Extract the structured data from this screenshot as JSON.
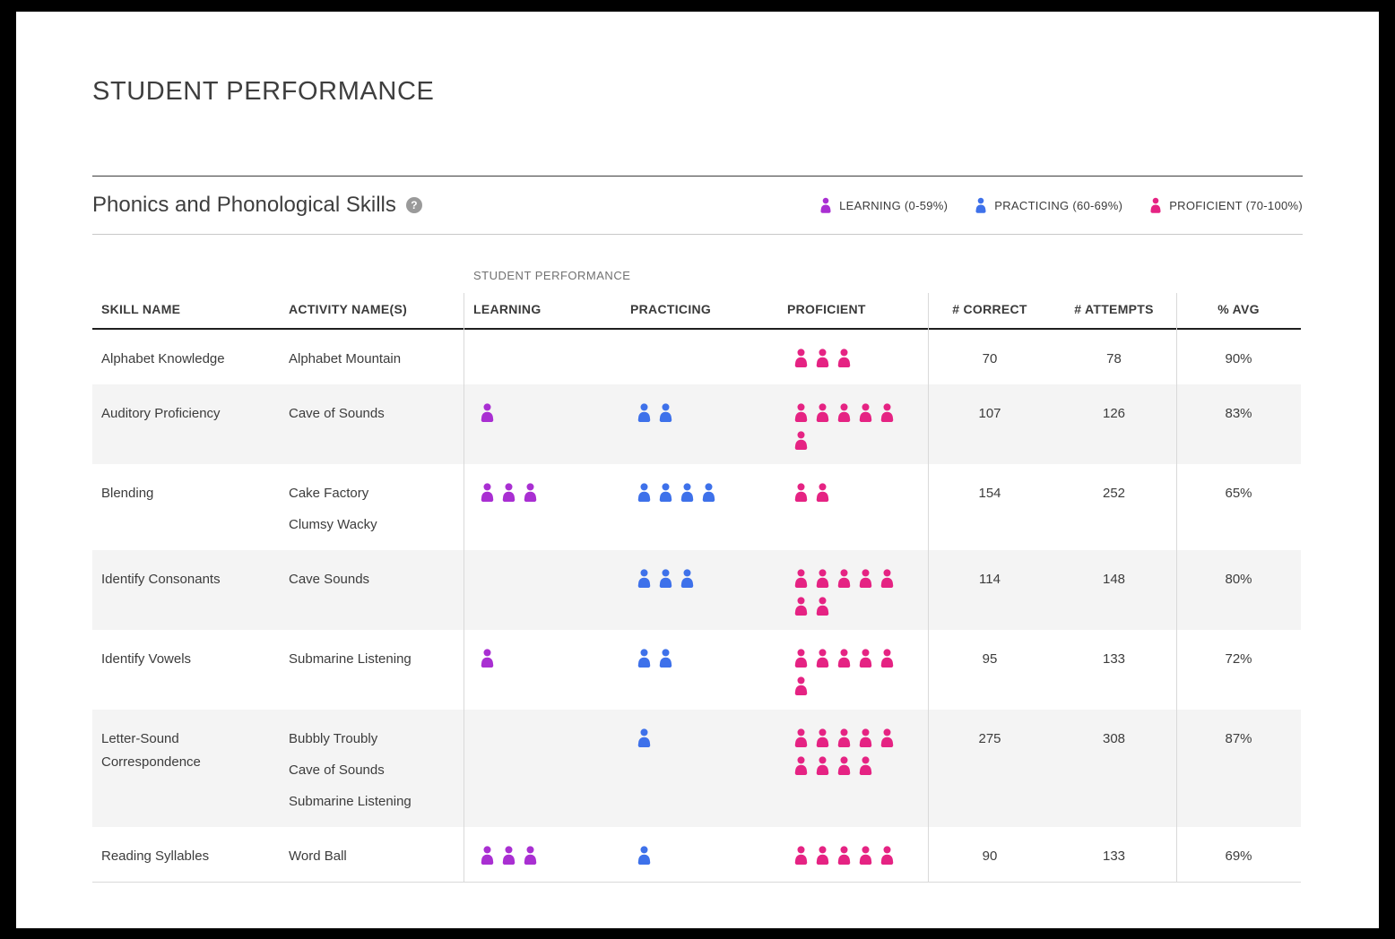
{
  "page": {
    "title": "STUDENT PERFORMANCE"
  },
  "section": {
    "title": "Phonics and Phonological Skills",
    "help_icon": "?"
  },
  "colors": {
    "learning": "#a92fd2",
    "practicing": "#3e71ea",
    "proficient": "#e52383",
    "header_text": "#3a3a3a",
    "alt_row_bg": "#f4f4f4"
  },
  "legend": [
    {
      "key": "learning",
      "label": "LEARNING (0-59%)"
    },
    {
      "key": "practicing",
      "label": "PRACTICING (60-69%)"
    },
    {
      "key": "proficient",
      "label": "PROFICIENT (70-100%)"
    }
  ],
  "table": {
    "group_header": "STUDENT PERFORMANCE",
    "columns": [
      {
        "key": "skill",
        "label": "SKILL NAME"
      },
      {
        "key": "activity",
        "label": "ACTIVITY NAME(S)"
      },
      {
        "key": "learning",
        "label": "LEARNING"
      },
      {
        "key": "practicing",
        "label": "PRACTICING"
      },
      {
        "key": "proficient",
        "label": "PROFICIENT"
      },
      {
        "key": "correct",
        "label": "# CORRECT"
      },
      {
        "key": "attempts",
        "label": "# ATTEMPTS"
      },
      {
        "key": "avg",
        "label": "% AVG"
      }
    ],
    "rows": [
      {
        "skill": "Alphabet Knowledge",
        "activities": [
          "Alphabet Mountain"
        ],
        "learning": 0,
        "practicing": 0,
        "proficient": 3,
        "correct": "70",
        "attempts": "78",
        "avg": "90%"
      },
      {
        "skill": "Auditory Proficiency",
        "activities": [
          "Cave of Sounds"
        ],
        "learning": 1,
        "practicing": 2,
        "proficient": 6,
        "correct": "107",
        "attempts": "126",
        "avg": "83%"
      },
      {
        "skill": "Blending",
        "activities": [
          "Cake Factory",
          "Clumsy Wacky"
        ],
        "learning": 3,
        "practicing": 4,
        "proficient": 2,
        "correct": "154",
        "attempts": "252",
        "avg": "65%"
      },
      {
        "skill": "Identify Consonants",
        "activities": [
          "Cave Sounds"
        ],
        "learning": 0,
        "practicing": 3,
        "proficient": 7,
        "correct": "114",
        "attempts": "148",
        "avg": "80%"
      },
      {
        "skill": "Identify Vowels",
        "activities": [
          "Submarine Listening"
        ],
        "learning": 1,
        "practicing": 2,
        "proficient": 6,
        "correct": "95",
        "attempts": "133",
        "avg": "72%"
      },
      {
        "skill": "Letter-Sound Correspondence",
        "activities": [
          "Bubbly Troubly",
          "Cave of Sounds",
          "Submarine Listening"
        ],
        "learning": 0,
        "practicing": 1,
        "proficient": 9,
        "correct": "275",
        "attempts": "308",
        "avg": "87%"
      },
      {
        "skill": "Reading Syllables",
        "activities": [
          "Word Ball"
        ],
        "learning": 3,
        "practicing": 1,
        "proficient": 5,
        "correct": "90",
        "attempts": "133",
        "avg": "69%"
      }
    ]
  }
}
